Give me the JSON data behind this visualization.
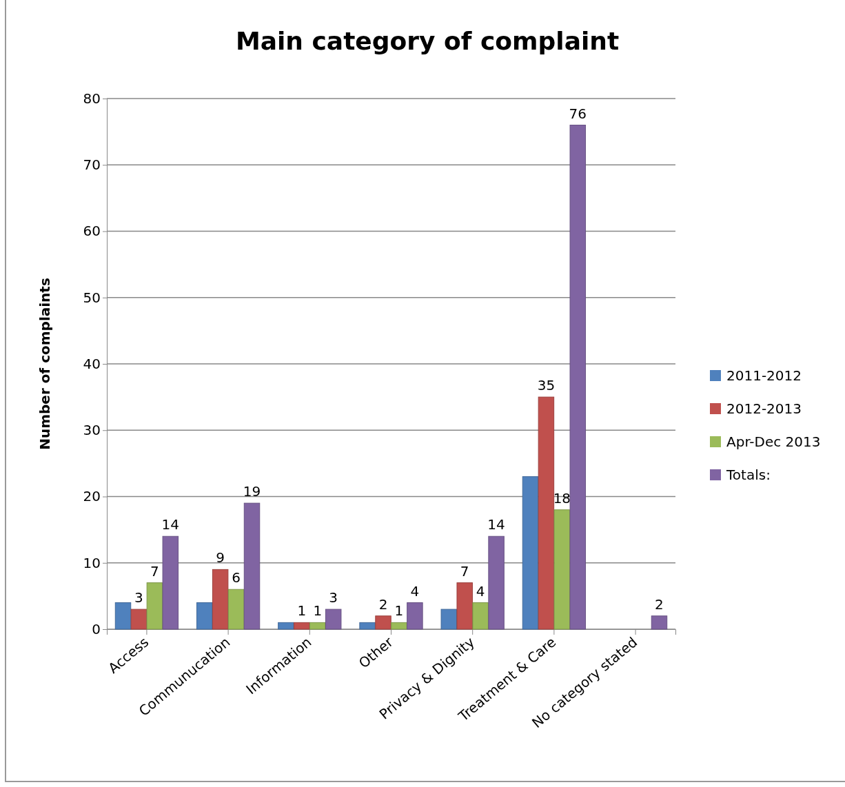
{
  "chart_data": {
    "type": "bar",
    "title": "Main category of complaint",
    "ylabel": "Number of complaints",
    "categories": [
      "Access",
      "Communucation",
      "Information",
      "Other",
      "Privacy & Dignity",
      "Treatment & Care",
      "No category stated"
    ],
    "series": [
      {
        "name": "2011-2012",
        "color": "#4f81bd",
        "values": [
          4,
          4,
          1,
          1,
          3,
          23,
          null
        ],
        "value_labels": [
          null,
          null,
          null,
          null,
          null,
          null,
          null
        ]
      },
      {
        "name": "2012-2013",
        "color": "#c0504d",
        "values": [
          3,
          9,
          1,
          2,
          7,
          35,
          null
        ],
        "value_labels": [
          "3",
          "9",
          "1",
          "2",
          "7",
          "35",
          null
        ]
      },
      {
        "name": "Apr-Dec 2013",
        "color": "#9bbb59",
        "values": [
          7,
          6,
          1,
          1,
          4,
          18,
          null
        ],
        "value_labels": [
          "7",
          "6",
          "1",
          "1",
          "4",
          "18",
          null
        ]
      },
      {
        "name": "Totals:",
        "color": "#8064a2",
        "values": [
          14,
          19,
          3,
          4,
          14,
          76,
          2
        ],
        "value_labels": [
          "14",
          "19",
          "3",
          "4",
          "14",
          "76",
          "2"
        ]
      }
    ],
    "ylim": [
      0,
      80
    ],
    "yticks": [
      0,
      10,
      20,
      30,
      40,
      50,
      60,
      70,
      80
    ],
    "grid": "y",
    "legend": "right"
  }
}
